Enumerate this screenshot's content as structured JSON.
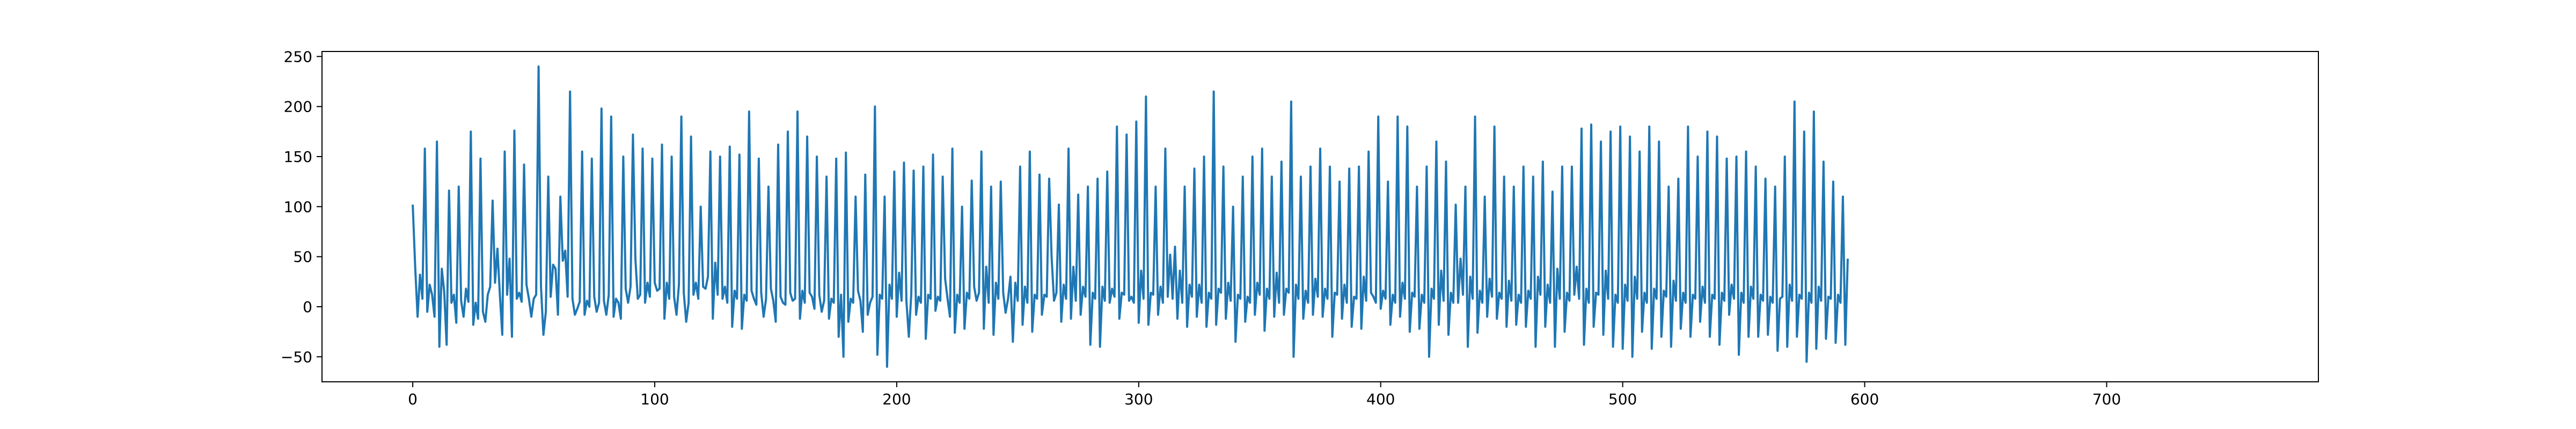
{
  "chart_data": {
    "type": "line",
    "title": "",
    "xlabel": "",
    "ylabel": "",
    "xlim": [
      -37.5,
      787.5
    ],
    "ylim": [
      -75,
      255
    ],
    "x_ticks": [
      0,
      100,
      200,
      300,
      400,
      500,
      600,
      700
    ],
    "y_ticks": [
      -50,
      0,
      50,
      100,
      150,
      200,
      250
    ],
    "x_tick_labels": [
      "0",
      "100",
      "200",
      "300",
      "400",
      "500",
      "600",
      "700"
    ],
    "y_tick_labels": [
      "−50",
      "0",
      "50",
      "100",
      "150",
      "200",
      "250"
    ],
    "grid": false,
    "legend": "none",
    "series": [
      {
        "color": "#1f77b4",
        "x_start": 0,
        "x_step": 1,
        "values": [
          102,
          40,
          -10,
          32,
          8,
          158,
          -5,
          22,
          12,
          -10,
          165,
          -40,
          38,
          15,
          -38,
          116,
          4,
          12,
          -16,
          120,
          6,
          -10,
          18,
          5,
          175,
          -18,
          4,
          -12,
          148,
          -5,
          -15,
          12,
          20,
          106,
          24,
          58,
          12,
          -28,
          155,
          12,
          48,
          -30,
          176,
          8,
          14,
          5,
          142,
          22,
          8,
          -10,
          8,
          12,
          240,
          20,
          -28,
          -5,
          130,
          10,
          42,
          38,
          -8,
          110,
          46,
          56,
          10,
          215,
          8,
          -8,
          -2,
          5,
          155,
          -8,
          6,
          0,
          148,
          10,
          -5,
          4,
          198,
          6,
          -8,
          12,
          190,
          -10,
          8,
          4,
          -12,
          150,
          18,
          4,
          20,
          172,
          48,
          8,
          12,
          158,
          4,
          24,
          10,
          148,
          24,
          16,
          18,
          162,
          -12,
          24,
          8,
          150,
          10,
          -8,
          22,
          190,
          14,
          -15,
          4,
          170,
          12,
          24,
          8,
          100,
          20,
          18,
          30,
          155,
          -12,
          44,
          12,
          150,
          8,
          20,
          4,
          160,
          -20,
          16,
          8,
          152,
          -22,
          12,
          6,
          195,
          16,
          8,
          2,
          148,
          14,
          -10,
          8,
          120,
          18,
          6,
          -15,
          162,
          10,
          4,
          2,
          175,
          14,
          6,
          8,
          195,
          -12,
          16,
          4,
          170,
          14,
          10,
          -2,
          150,
          12,
          -5,
          6,
          130,
          -12,
          8,
          4,
          148,
          -30,
          12,
          -50,
          154,
          -15,
          8,
          4,
          110,
          16,
          6,
          -25,
          132,
          -8,
          4,
          10,
          200,
          -48,
          12,
          8,
          110,
          -60,
          22,
          8,
          135,
          -10,
          34,
          6,
          144,
          6,
          -30,
          12,
          136,
          -8,
          10,
          4,
          140,
          -32,
          12,
          8,
          152,
          -4,
          10,
          6,
          130,
          28,
          8,
          -10,
          158,
          -26,
          12,
          4,
          100,
          -22,
          14,
          8,
          126,
          20,
          6,
          14,
          155,
          -22,
          40,
          4,
          120,
          -28,
          24,
          8,
          125,
          14,
          -6,
          8,
          30,
          -35,
          24,
          6,
          140,
          -18,
          20,
          4,
          155,
          -25,
          12,
          8,
          132,
          -8,
          12,
          10,
          128,
          50,
          6,
          14,
          102,
          -15,
          22,
          8,
          158,
          -12,
          40,
          6,
          112,
          -8,
          20,
          10,
          120,
          -38,
          14,
          8,
          128,
          -40,
          20,
          6,
          135,
          4,
          18,
          10,
          180,
          -12,
          14,
          12,
          172,
          6,
          10,
          4,
          185,
          -16,
          36,
          8,
          210,
          -18,
          14,
          12,
          120,
          -8,
          20,
          4,
          158,
          10,
          52,
          8,
          60,
          -12,
          36,
          4,
          120,
          -20,
          22,
          10,
          138,
          -10,
          22,
          4,
          150,
          -20,
          14,
          8,
          215,
          -18,
          18,
          14,
          140,
          -12,
          24,
          6,
          100,
          -35,
          12,
          8,
          130,
          -15,
          10,
          4,
          150,
          -8,
          24,
          12,
          158,
          -24,
          18,
          8,
          130,
          -10,
          34,
          4,
          145,
          -8,
          18,
          14,
          205,
          -50,
          22,
          8,
          130,
          -12,
          16,
          4,
          140,
          -8,
          28,
          10,
          158,
          -10,
          18,
          8,
          140,
          -30,
          14,
          12,
          125,
          -12,
          22,
          4,
          138,
          -20,
          10,
          8,
          140,
          -22,
          30,
          6,
          155,
          14,
          10,
          4,
          190,
          -2,
          16,
          8,
          125,
          -18,
          12,
          4,
          190,
          -10,
          24,
          8,
          180,
          -25,
          14,
          10,
          120,
          -22,
          12,
          4,
          140,
          -50,
          18,
          8,
          165,
          -18,
          36,
          6,
          145,
          -28,
          14,
          4,
          102,
          4,
          48,
          12,
          120,
          -40,
          30,
          8,
          190,
          -26,
          16,
          4,
          110,
          -10,
          28,
          10,
          180,
          -12,
          14,
          8,
          130,
          -20,
          26,
          6,
          120,
          -18,
          12,
          4,
          140,
          -20,
          16,
          8,
          130,
          -40,
          30,
          12,
          145,
          -20,
          22,
          4,
          115,
          -40,
          38,
          8,
          140,
          -25,
          14,
          6,
          140,
          12,
          40,
          8,
          178,
          -38,
          18,
          4,
          182,
          -20,
          14,
          12,
          165,
          -28,
          36,
          8,
          175,
          -40,
          12,
          4,
          180,
          -42,
          22,
          6,
          170,
          -50,
          30,
          8,
          155,
          -25,
          14,
          4,
          180,
          -42,
          18,
          8,
          165,
          -30,
          16,
          10,
          120,
          -40,
          26,
          6,
          128,
          -22,
          14,
          4,
          180,
          -30,
          12,
          8,
          150,
          -15,
          20,
          4,
          175,
          -30,
          12,
          8,
          170,
          -38,
          14,
          6,
          148,
          -8,
          22,
          8,
          150,
          -48,
          14,
          4,
          155,
          -30,
          20,
          8,
          140,
          -30,
          12,
          6,
          128,
          -28,
          10,
          4,
          120,
          -44,
          8,
          10,
          150,
          -40,
          22,
          6,
          205,
          -30,
          12,
          8,
          175,
          -55,
          14,
          4,
          195,
          -42,
          20,
          6,
          145,
          -32,
          10,
          8,
          125,
          -36,
          12,
          4,
          110,
          -38,
          48
        ]
      }
    ]
  }
}
